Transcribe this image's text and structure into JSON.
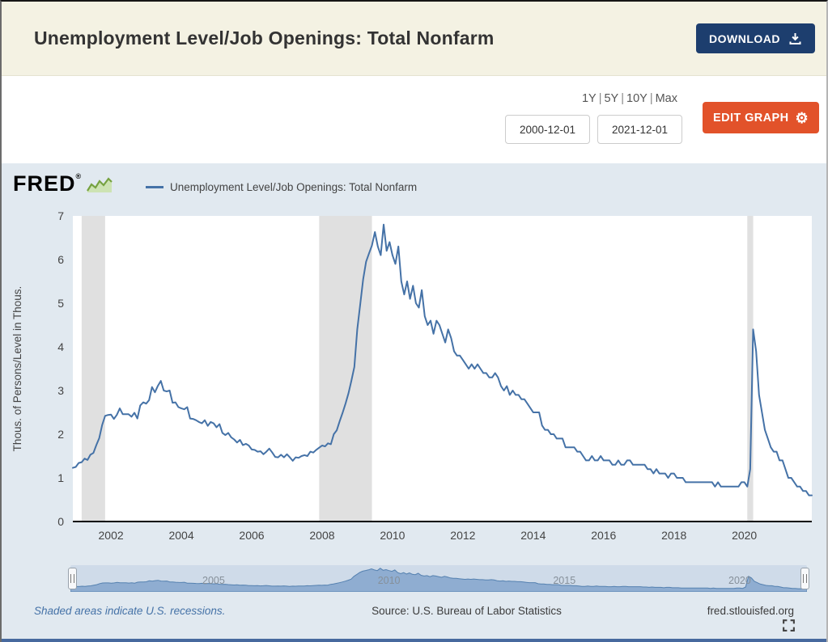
{
  "header": {
    "title": "Unemployment Level/Job Openings: Total Nonfarm",
    "download_label": "DOWNLOAD"
  },
  "controls": {
    "range_links": [
      "1Y",
      "5Y",
      "10Y",
      "Max"
    ],
    "separator": "|",
    "date_start": "2000-12-01",
    "date_end": "2021-12-01",
    "edit_graph_label": "EDIT GRAPH"
  },
  "graph": {
    "brand": "FRED",
    "registered_mark": "®",
    "legend_label": "Unemployment Level/Job Openings: Total Nonfarm"
  },
  "icons": {
    "gear": "⚙"
  },
  "footer": {
    "recession_note": "Shaded areas indicate U.S. recessions.",
    "source": "Source: U.S. Bureau of Labor Statistics",
    "site": "fred.stlouisfed.org"
  },
  "colors": {
    "line": "#4572a7",
    "recession_band": "#e0e0e0",
    "panel_bg": "#e1e9f0",
    "header_bg": "#f4f2e3",
    "download_button": "#1d3e6e",
    "edit_button": "#e2522a",
    "brush_bg": "#cfdbe9",
    "brush_area_fill": "#8fadd1",
    "brush_area_stroke": "#5581b0"
  },
  "chart_data": {
    "type": "line",
    "title": "Unemployment Level/Job Openings: Total Nonfarm",
    "ylabel": "Thous. of Persons/Level in Thous.",
    "xlabel": "",
    "x_start": "2000-12",
    "x_end": "2021-12",
    "frequency": "monthly",
    "ylim": [
      0,
      7
    ],
    "y_ticks": [
      0,
      1,
      2,
      3,
      4,
      5,
      6,
      7
    ],
    "x_ticks": [
      "2002",
      "2004",
      "2006",
      "2008",
      "2010",
      "2012",
      "2014",
      "2016",
      "2018",
      "2020"
    ],
    "brush_x_labels": [
      "2005",
      "2010",
      "2015",
      "2020"
    ],
    "recessions": [
      [
        "2001-03",
        "2001-11"
      ],
      [
        "2007-12",
        "2009-06"
      ],
      [
        "2020-02",
        "2020-04"
      ]
    ],
    "grid": false,
    "legend_position": "top",
    "values": [
      1.23,
      1.25,
      1.34,
      1.36,
      1.44,
      1.41,
      1.53,
      1.57,
      1.75,
      1.91,
      2.21,
      2.42,
      2.44,
      2.45,
      2.35,
      2.44,
      2.59,
      2.46,
      2.46,
      2.46,
      2.4,
      2.49,
      2.36,
      2.66,
      2.73,
      2.7,
      2.78,
      3.08,
      2.96,
      3.11,
      3.22,
      3.0,
      2.98,
      3.0,
      2.72,
      2.73,
      2.62,
      2.59,
      2.57,
      2.62,
      2.36,
      2.35,
      2.32,
      2.28,
      2.25,
      2.32,
      2.19,
      2.28,
      2.25,
      2.16,
      2.23,
      2.03,
      1.98,
      2.03,
      1.93,
      1.88,
      1.81,
      1.87,
      1.75,
      1.78,
      1.74,
      1.65,
      1.64,
      1.6,
      1.61,
      1.54,
      1.6,
      1.67,
      1.58,
      1.48,
      1.47,
      1.53,
      1.47,
      1.54,
      1.47,
      1.39,
      1.47,
      1.46,
      1.5,
      1.52,
      1.5,
      1.6,
      1.58,
      1.64,
      1.69,
      1.74,
      1.72,
      1.79,
      1.77,
      2.0,
      2.09,
      2.3,
      2.49,
      2.7,
      2.94,
      3.23,
      3.54,
      4.4,
      4.98,
      5.55,
      5.95,
      6.14,
      6.32,
      6.63,
      6.3,
      6.1,
      6.8,
      6.2,
      6.4,
      6.1,
      5.9,
      6.3,
      5.5,
      5.2,
      5.5,
      5.1,
      5.4,
      5.0,
      4.9,
      5.3,
      4.7,
      4.5,
      4.6,
      4.3,
      4.6,
      4.5,
      4.3,
      4.1,
      4.4,
      4.2,
      3.9,
      3.8,
      3.8,
      3.7,
      3.6,
      3.5,
      3.6,
      3.5,
      3.6,
      3.5,
      3.4,
      3.4,
      3.3,
      3.3,
      3.4,
      3.3,
      3.1,
      3.0,
      3.1,
      2.9,
      3.0,
      2.9,
      2.9,
      2.8,
      2.8,
      2.7,
      2.6,
      2.5,
      2.5,
      2.5,
      2.2,
      2.1,
      2.1,
      2.0,
      2.0,
      1.9,
      1.9,
      1.9,
      1.7,
      1.7,
      1.7,
      1.7,
      1.6,
      1.6,
      1.5,
      1.4,
      1.4,
      1.5,
      1.4,
      1.4,
      1.5,
      1.4,
      1.4,
      1.4,
      1.3,
      1.3,
      1.4,
      1.3,
      1.3,
      1.4,
      1.4,
      1.3,
      1.3,
      1.3,
      1.3,
      1.3,
      1.2,
      1.2,
      1.1,
      1.2,
      1.1,
      1.1,
      1.1,
      1.0,
      1.1,
      1.1,
      1.0,
      1.0,
      1.0,
      0.9,
      0.9,
      0.9,
      0.9,
      0.9,
      0.9,
      0.9,
      0.9,
      0.9,
      0.9,
      0.8,
      0.9,
      0.8,
      0.8,
      0.8,
      0.8,
      0.8,
      0.8,
      0.8,
      0.9,
      0.9,
      0.8,
      1.2,
      4.4,
      3.9,
      2.9,
      2.5,
      2.1,
      1.9,
      1.7,
      1.6,
      1.6,
      1.4,
      1.4,
      1.2,
      1.0,
      1.0,
      0.9,
      0.8,
      0.8,
      0.7,
      0.7,
      0.6,
      0.6
    ]
  }
}
